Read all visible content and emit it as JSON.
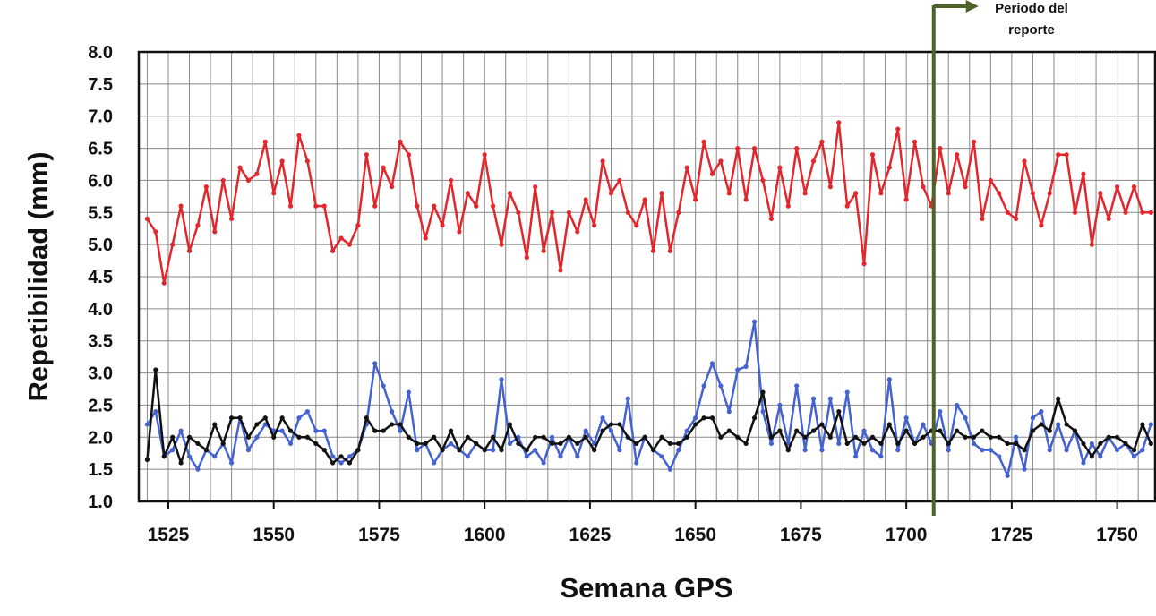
{
  "chart_data": {
    "type": "line",
    "xlabel": "Semana GPS",
    "ylabel": "Repetibilidad (mm)",
    "x": [
      1520,
      1522,
      1524,
      1526,
      1528,
      1530,
      1532,
      1534,
      1536,
      1538,
      1540,
      1542,
      1544,
      1546,
      1548,
      1550,
      1552,
      1554,
      1556,
      1558,
      1560,
      1562,
      1564,
      1566,
      1568,
      1570,
      1572,
      1574,
      1576,
      1578,
      1580,
      1582,
      1584,
      1586,
      1588,
      1590,
      1592,
      1594,
      1596,
      1598,
      1600,
      1602,
      1604,
      1606,
      1608,
      1610,
      1612,
      1614,
      1616,
      1618,
      1620,
      1622,
      1624,
      1626,
      1628,
      1630,
      1632,
      1634,
      1636,
      1638,
      1640,
      1642,
      1644,
      1646,
      1648,
      1650,
      1652,
      1654,
      1656,
      1658,
      1660,
      1662,
      1664,
      1666,
      1668,
      1670,
      1672,
      1674,
      1676,
      1678,
      1680,
      1682,
      1684,
      1686,
      1688,
      1690,
      1692,
      1694,
      1696,
      1698,
      1700,
      1702,
      1704,
      1706,
      1708,
      1710,
      1712,
      1714,
      1716,
      1718,
      1720,
      1722,
      1724,
      1726,
      1728,
      1730,
      1732,
      1734,
      1736,
      1738,
      1740,
      1742,
      1744,
      1746,
      1748,
      1750,
      1752,
      1754,
      1756,
      1758
    ],
    "series": [
      {
        "color": "#e3262b",
        "values": [
          5.4,
          5.2,
          4.4,
          5.0,
          5.6,
          4.9,
          5.3,
          5.9,
          5.2,
          6.0,
          5.4,
          6.2,
          6.0,
          6.1,
          6.6,
          5.8,
          6.3,
          5.6,
          6.7,
          6.3,
          5.6,
          5.6,
          4.9,
          5.1,
          5.0,
          5.3,
          6.4,
          5.6,
          6.2,
          5.9,
          6.6,
          6.4,
          5.6,
          5.1,
          5.6,
          5.3,
          6.0,
          5.2,
          5.8,
          5.6,
          6.4,
          5.6,
          5.0,
          5.8,
          5.5,
          4.8,
          5.9,
          4.9,
          5.5,
          4.6,
          5.5,
          5.2,
          5.7,
          5.3,
          6.3,
          5.8,
          6.0,
          5.5,
          5.3,
          5.7,
          4.9,
          5.8,
          4.9,
          5.5,
          6.2,
          5.7,
          6.6,
          6.1,
          6.3,
          5.8,
          6.5,
          5.7,
          6.5,
          6.0,
          5.4,
          6.2,
          5.6,
          6.5,
          5.8,
          6.3,
          6.6,
          5.9,
          6.9,
          5.6,
          5.8,
          4.7,
          6.4,
          5.8,
          6.2,
          6.8,
          5.7,
          6.6,
          5.9,
          5.6,
          6.5,
          5.8,
          6.4,
          5.9,
          6.6,
          5.4,
          6.0,
          5.8,
          5.5,
          5.4,
          6.3,
          5.8,
          5.3,
          5.8,
          6.4,
          6.4,
          5.5,
          6.1,
          5.0,
          5.8,
          5.4,
          5.9,
          5.5,
          5.9,
          5.5,
          5.5
        ]
      },
      {
        "color": "#4462d0",
        "values": [
          2.2,
          2.4,
          1.7,
          1.8,
          2.1,
          1.7,
          1.5,
          1.8,
          1.7,
          1.9,
          1.6,
          2.3,
          1.8,
          2.0,
          2.2,
          2.1,
          2.1,
          1.9,
          2.3,
          2.4,
          2.1,
          2.1,
          1.7,
          1.6,
          1.7,
          1.8,
          2.2,
          3.15,
          2.8,
          2.4,
          2.1,
          2.7,
          1.8,
          1.9,
          1.6,
          1.8,
          1.9,
          1.8,
          1.7,
          1.9,
          1.8,
          1.8,
          2.9,
          1.9,
          2.0,
          1.7,
          1.8,
          1.6,
          2.0,
          1.7,
          2.0,
          1.7,
          2.1,
          1.9,
          2.3,
          2.1,
          1.8,
          2.6,
          1.6,
          2.0,
          1.8,
          1.7,
          1.5,
          1.8,
          2.1,
          2.3,
          2.8,
          3.15,
          2.8,
          2.4,
          3.05,
          3.1,
          3.8,
          2.4,
          1.9,
          2.5,
          1.9,
          2.8,
          1.8,
          2.6,
          1.8,
          2.6,
          1.9,
          2.7,
          1.7,
          2.1,
          1.8,
          1.7,
          2.9,
          1.8,
          2.3,
          1.9,
          2.2,
          1.9,
          2.4,
          1.8,
          2.5,
          2.3,
          1.9,
          1.8,
          1.8,
          1.7,
          1.4,
          2.0,
          1.5,
          2.3,
          2.4,
          1.8,
          2.2,
          1.8,
          2.1,
          1.6,
          1.9,
          1.7,
          2.0,
          1.8,
          1.9,
          1.7,
          1.8,
          2.2
        ]
      },
      {
        "color": "#111111",
        "values": [
          1.65,
          3.05,
          1.7,
          2.0,
          1.6,
          2.0,
          1.9,
          1.8,
          2.2,
          1.9,
          2.3,
          2.3,
          2.0,
          2.2,
          2.3,
          2.0,
          2.3,
          2.1,
          2.0,
          2.0,
          1.9,
          1.8,
          1.6,
          1.7,
          1.6,
          1.8,
          2.3,
          2.1,
          2.1,
          2.2,
          2.2,
          2.0,
          1.9,
          1.9,
          2.0,
          1.8,
          2.1,
          1.8,
          2.0,
          1.9,
          1.8,
          2.0,
          1.8,
          2.2,
          1.9,
          1.8,
          2.0,
          2.0,
          1.9,
          1.9,
          2.0,
          1.9,
          2.0,
          1.8,
          2.1,
          2.2,
          2.2,
          2.0,
          1.9,
          2.0,
          1.8,
          2.0,
          1.9,
          1.9,
          2.0,
          2.2,
          2.3,
          2.3,
          2.0,
          2.1,
          2.0,
          1.9,
          2.3,
          2.7,
          2.0,
          2.1,
          1.8,
          2.1,
          2.0,
          2.1,
          2.2,
          2.0,
          2.4,
          1.9,
          2.0,
          1.9,
          2.0,
          1.9,
          2.2,
          1.9,
          2.1,
          1.9,
          2.0,
          2.1,
          2.1,
          1.9,
          2.1,
          2.0,
          2.0,
          2.1,
          2.0,
          2.0,
          1.9,
          1.9,
          1.8,
          2.1,
          2.2,
          2.1,
          2.6,
          2.2,
          2.1,
          1.9,
          1.7,
          1.9,
          2.0,
          2.0,
          1.9,
          1.8,
          2.2,
          1.9
        ]
      }
    ],
    "xlim": [
      1518,
      1759
    ],
    "ylim": [
      1.0,
      8.0
    ],
    "xticks": [
      1525,
      1550,
      1575,
      1600,
      1625,
      1650,
      1675,
      1700,
      1725,
      1750
    ],
    "xminorticks": [
      1520,
      1525,
      1530,
      1535,
      1540,
      1545,
      1550,
      1555,
      1560,
      1565,
      1570,
      1575,
      1580,
      1585,
      1590,
      1595,
      1600,
      1605,
      1610,
      1615,
      1620,
      1625,
      1630,
      1635,
      1640,
      1645,
      1650,
      1655,
      1660,
      1665,
      1670,
      1675,
      1680,
      1685,
      1690,
      1695,
      1700,
      1705,
      1710,
      1715,
      1720,
      1725,
      1730,
      1735,
      1740,
      1745,
      1750,
      1755
    ],
    "yticks": [
      {
        "value": 1.0,
        "label": "1.0"
      },
      1.5,
      {
        "value": 2.0,
        "label": "2.0"
      },
      2.5,
      {
        "value": 3.0,
        "label": "3.0"
      },
      3.5,
      {
        "value": 4.0,
        "label": "4.0"
      },
      4.5,
      {
        "value": 5.0,
        "label": "5.0"
      },
      5.5,
      {
        "value": 6.0,
        "label": "6.0"
      },
      6.5,
      {
        "value": 7.0,
        "label": "7.0"
      },
      7.5,
      {
        "value": 8.0,
        "label": "8.0"
      }
    ],
    "grid": true,
    "annotation": {
      "x": 1706.5,
      "lines": [
        "Periodo del",
        "reporte"
      ],
      "color": "#4f6228"
    }
  }
}
